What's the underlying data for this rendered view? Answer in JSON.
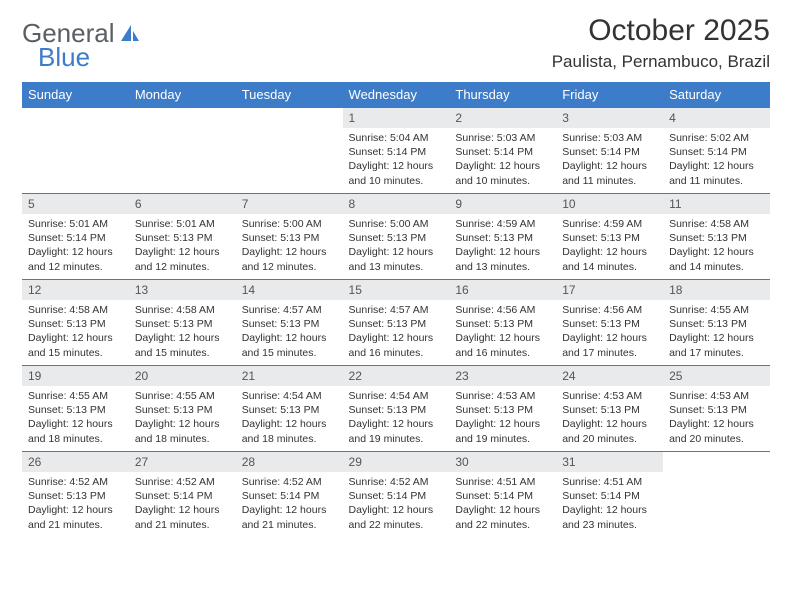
{
  "logo": {
    "text1": "General",
    "text2": "Blue"
  },
  "title": "October 2025",
  "location": "Paulista, Pernambuco, Brazil",
  "colors": {
    "accent": "#3d7cc9",
    "daybg": "#e9eaec",
    "text": "#333333"
  },
  "weekdays": [
    "Sunday",
    "Monday",
    "Tuesday",
    "Wednesday",
    "Thursday",
    "Friday",
    "Saturday"
  ],
  "lead_blanks": 3,
  "days": [
    {
      "n": "1",
      "sr": "5:04 AM",
      "ss": "5:14 PM",
      "dl": "12 hours and 10 minutes."
    },
    {
      "n": "2",
      "sr": "5:03 AM",
      "ss": "5:14 PM",
      "dl": "12 hours and 10 minutes."
    },
    {
      "n": "3",
      "sr": "5:03 AM",
      "ss": "5:14 PM",
      "dl": "12 hours and 11 minutes."
    },
    {
      "n": "4",
      "sr": "5:02 AM",
      "ss": "5:14 PM",
      "dl": "12 hours and 11 minutes."
    },
    {
      "n": "5",
      "sr": "5:01 AM",
      "ss": "5:14 PM",
      "dl": "12 hours and 12 minutes."
    },
    {
      "n": "6",
      "sr": "5:01 AM",
      "ss": "5:13 PM",
      "dl": "12 hours and 12 minutes."
    },
    {
      "n": "7",
      "sr": "5:00 AM",
      "ss": "5:13 PM",
      "dl": "12 hours and 12 minutes."
    },
    {
      "n": "8",
      "sr": "5:00 AM",
      "ss": "5:13 PM",
      "dl": "12 hours and 13 minutes."
    },
    {
      "n": "9",
      "sr": "4:59 AM",
      "ss": "5:13 PM",
      "dl": "12 hours and 13 minutes."
    },
    {
      "n": "10",
      "sr": "4:59 AM",
      "ss": "5:13 PM",
      "dl": "12 hours and 14 minutes."
    },
    {
      "n": "11",
      "sr": "4:58 AM",
      "ss": "5:13 PM",
      "dl": "12 hours and 14 minutes."
    },
    {
      "n": "12",
      "sr": "4:58 AM",
      "ss": "5:13 PM",
      "dl": "12 hours and 15 minutes."
    },
    {
      "n": "13",
      "sr": "4:58 AM",
      "ss": "5:13 PM",
      "dl": "12 hours and 15 minutes."
    },
    {
      "n": "14",
      "sr": "4:57 AM",
      "ss": "5:13 PM",
      "dl": "12 hours and 15 minutes."
    },
    {
      "n": "15",
      "sr": "4:57 AM",
      "ss": "5:13 PM",
      "dl": "12 hours and 16 minutes."
    },
    {
      "n": "16",
      "sr": "4:56 AM",
      "ss": "5:13 PM",
      "dl": "12 hours and 16 minutes."
    },
    {
      "n": "17",
      "sr": "4:56 AM",
      "ss": "5:13 PM",
      "dl": "12 hours and 17 minutes."
    },
    {
      "n": "18",
      "sr": "4:55 AM",
      "ss": "5:13 PM",
      "dl": "12 hours and 17 minutes."
    },
    {
      "n": "19",
      "sr": "4:55 AM",
      "ss": "5:13 PM",
      "dl": "12 hours and 18 minutes."
    },
    {
      "n": "20",
      "sr": "4:55 AM",
      "ss": "5:13 PM",
      "dl": "12 hours and 18 minutes."
    },
    {
      "n": "21",
      "sr": "4:54 AM",
      "ss": "5:13 PM",
      "dl": "12 hours and 18 minutes."
    },
    {
      "n": "22",
      "sr": "4:54 AM",
      "ss": "5:13 PM",
      "dl": "12 hours and 19 minutes."
    },
    {
      "n": "23",
      "sr": "4:53 AM",
      "ss": "5:13 PM",
      "dl": "12 hours and 19 minutes."
    },
    {
      "n": "24",
      "sr": "4:53 AM",
      "ss": "5:13 PM",
      "dl": "12 hours and 20 minutes."
    },
    {
      "n": "25",
      "sr": "4:53 AM",
      "ss": "5:13 PM",
      "dl": "12 hours and 20 minutes."
    },
    {
      "n": "26",
      "sr": "4:52 AM",
      "ss": "5:13 PM",
      "dl": "12 hours and 21 minutes."
    },
    {
      "n": "27",
      "sr": "4:52 AM",
      "ss": "5:14 PM",
      "dl": "12 hours and 21 minutes."
    },
    {
      "n": "28",
      "sr": "4:52 AM",
      "ss": "5:14 PM",
      "dl": "12 hours and 21 minutes."
    },
    {
      "n": "29",
      "sr": "4:52 AM",
      "ss": "5:14 PM",
      "dl": "12 hours and 22 minutes."
    },
    {
      "n": "30",
      "sr": "4:51 AM",
      "ss": "5:14 PM",
      "dl": "12 hours and 22 minutes."
    },
    {
      "n": "31",
      "sr": "4:51 AM",
      "ss": "5:14 PM",
      "dl": "12 hours and 23 minutes."
    }
  ],
  "labels": {
    "sunrise": "Sunrise: ",
    "sunset": "Sunset: ",
    "daylight": "Daylight: "
  }
}
